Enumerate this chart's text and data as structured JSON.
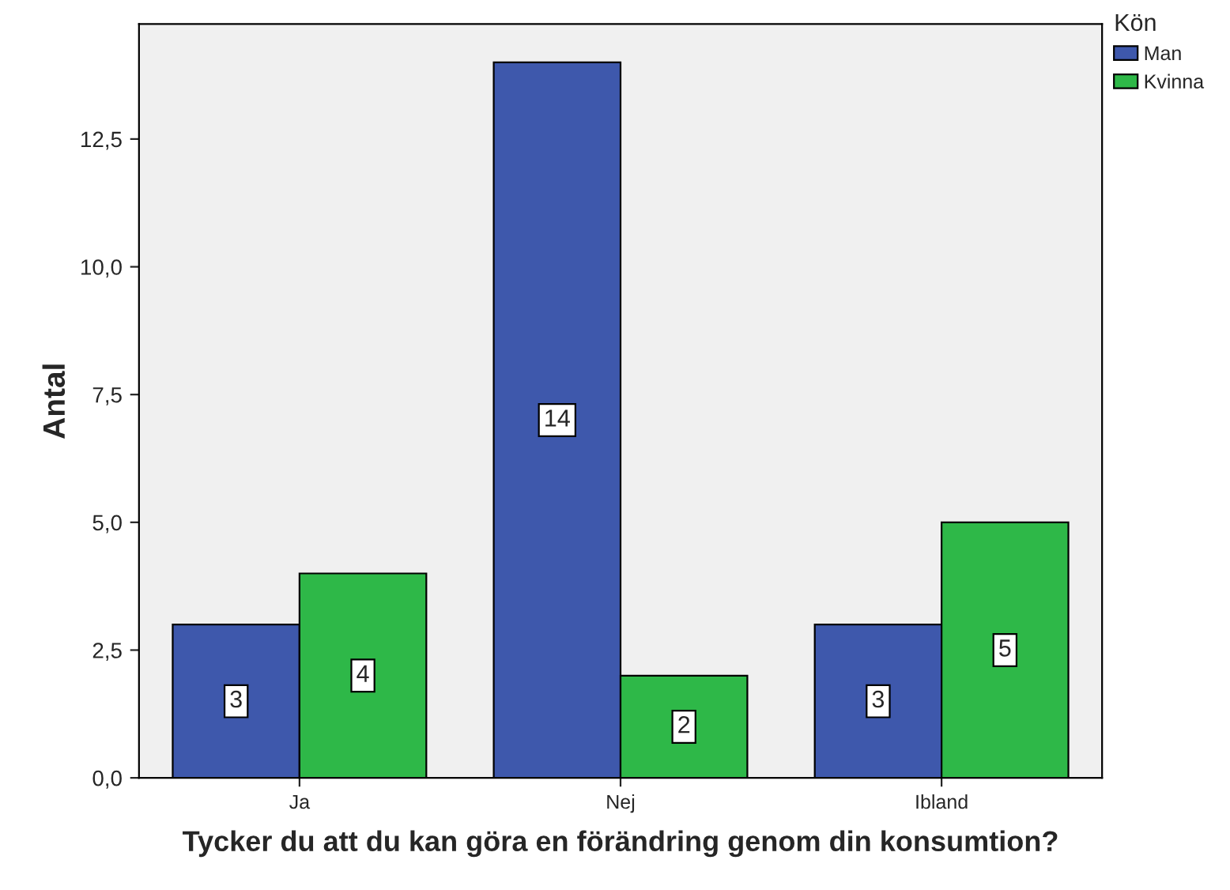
{
  "chart_data": {
    "type": "bar",
    "xlabel": "Tycker du att du kan göra en förändring genom din konsumtion?",
    "ylabel": "Antal",
    "legend_title": "Kön",
    "categories": [
      "Ja",
      "Nej",
      "Ibland"
    ],
    "series": [
      {
        "name": "Man",
        "color": "#3e58ac",
        "values": [
          3,
          14,
          3
        ]
      },
      {
        "name": "Kvinna",
        "color": "#2eb848",
        "values": [
          4,
          2,
          5
        ]
      }
    ],
    "ylim": [
      0,
      14.75
    ],
    "yticks": [
      {
        "value": 0,
        "label": "0,0"
      },
      {
        "value": 2.5,
        "label": "2,5"
      },
      {
        "value": 5,
        "label": "5,0"
      },
      {
        "value": 7.5,
        "label": "7,5"
      },
      {
        "value": 10,
        "label": "10,0"
      },
      {
        "value": 12.5,
        "label": "12,5"
      }
    ],
    "data_labels": true,
    "legend": "top right",
    "grid": false
  }
}
